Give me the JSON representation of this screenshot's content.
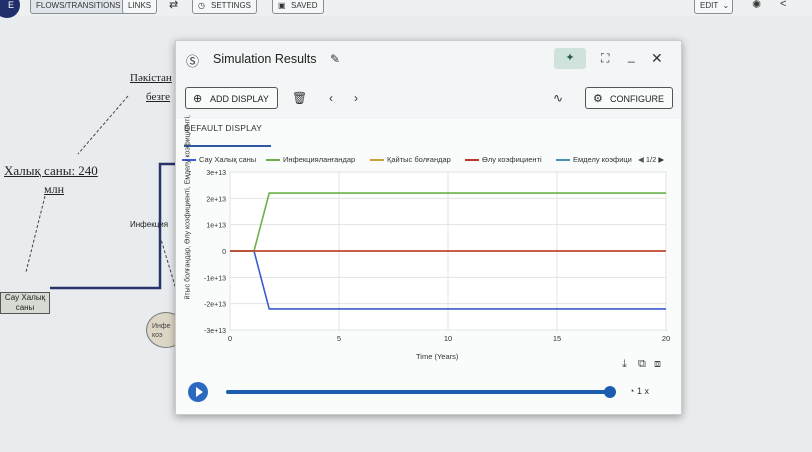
{
  "toolbar": {
    "logo_text": "E",
    "flows_label": "FLOWS/TRANSITIONS",
    "links_label": "LINKS",
    "settings_label": "SETTINGS",
    "saved_label": "SAVED",
    "edit_label": "EDIT"
  },
  "diagram": {
    "node_top1": "Пәкістан",
    "node_top2": "безге",
    "population_title": "Халық саны: 240",
    "population_unit": "млн",
    "box_label": "Сау Халық саны",
    "flow_label": "Инфекция",
    "ellipse_label_1": "Инфе",
    "ellipse_label_2": "коэ"
  },
  "window": {
    "title": "Simulation Results",
    "add_display": "ADD DISPLAY",
    "configure": "CONFIGURE",
    "tab_default": "DEFAULT DISPLAY",
    "pager": "1/2",
    "speed": "1 x"
  },
  "legend": [
    {
      "name": "Сау Халық саны",
      "color": "#3c5bd0"
    },
    {
      "name": "Инфекцияланғандар",
      "color": "#6ab04c"
    },
    {
      "name": "Қайтыс болғандар",
      "color": "#c8a33a"
    },
    {
      "name": "Өлу коэфициенті",
      "color": "#c0392b"
    },
    {
      "name": "Емделу коэфици",
      "color": "#4a8fb0"
    }
  ],
  "chart_data": {
    "type": "line",
    "xlabel": "Time (Years)",
    "ylabel": "йтыс болғандар, Өлу коэфициенті, Емделу коэфициенті,",
    "x_ticks": [
      "0",
      "5",
      "10",
      "15",
      "20"
    ],
    "y_ticks": [
      "3e+13",
      "2e+13",
      "1e+13",
      "0",
      "-1e+13",
      "-2e+13",
      "-3e+13"
    ],
    "xlim": [
      0,
      20
    ],
    "ylim": [
      -30000000000000.0,
      30000000000000.0
    ],
    "series": [
      {
        "name": "Сау Халық саны",
        "color": "#3c5bd0",
        "x": [
          0,
          1.1,
          1.8,
          20
        ],
        "y": [
          0,
          0,
          -22000000000000.0,
          -22000000000000.0
        ]
      },
      {
        "name": "Инфекцияланғандар",
        "color": "#6ab04c",
        "x": [
          0,
          1.1,
          1.8,
          20
        ],
        "y": [
          0,
          0,
          22000000000000.0,
          22000000000000.0
        ]
      },
      {
        "name": "Қайтыс болғандар",
        "color": "#c8a33a",
        "x": [
          0,
          20
        ],
        "y": [
          0,
          0
        ]
      },
      {
        "name": "Өлу коэфициенті",
        "color": "#c0392b",
        "x": [
          0,
          20
        ],
        "y": [
          0,
          0
        ]
      }
    ]
  }
}
